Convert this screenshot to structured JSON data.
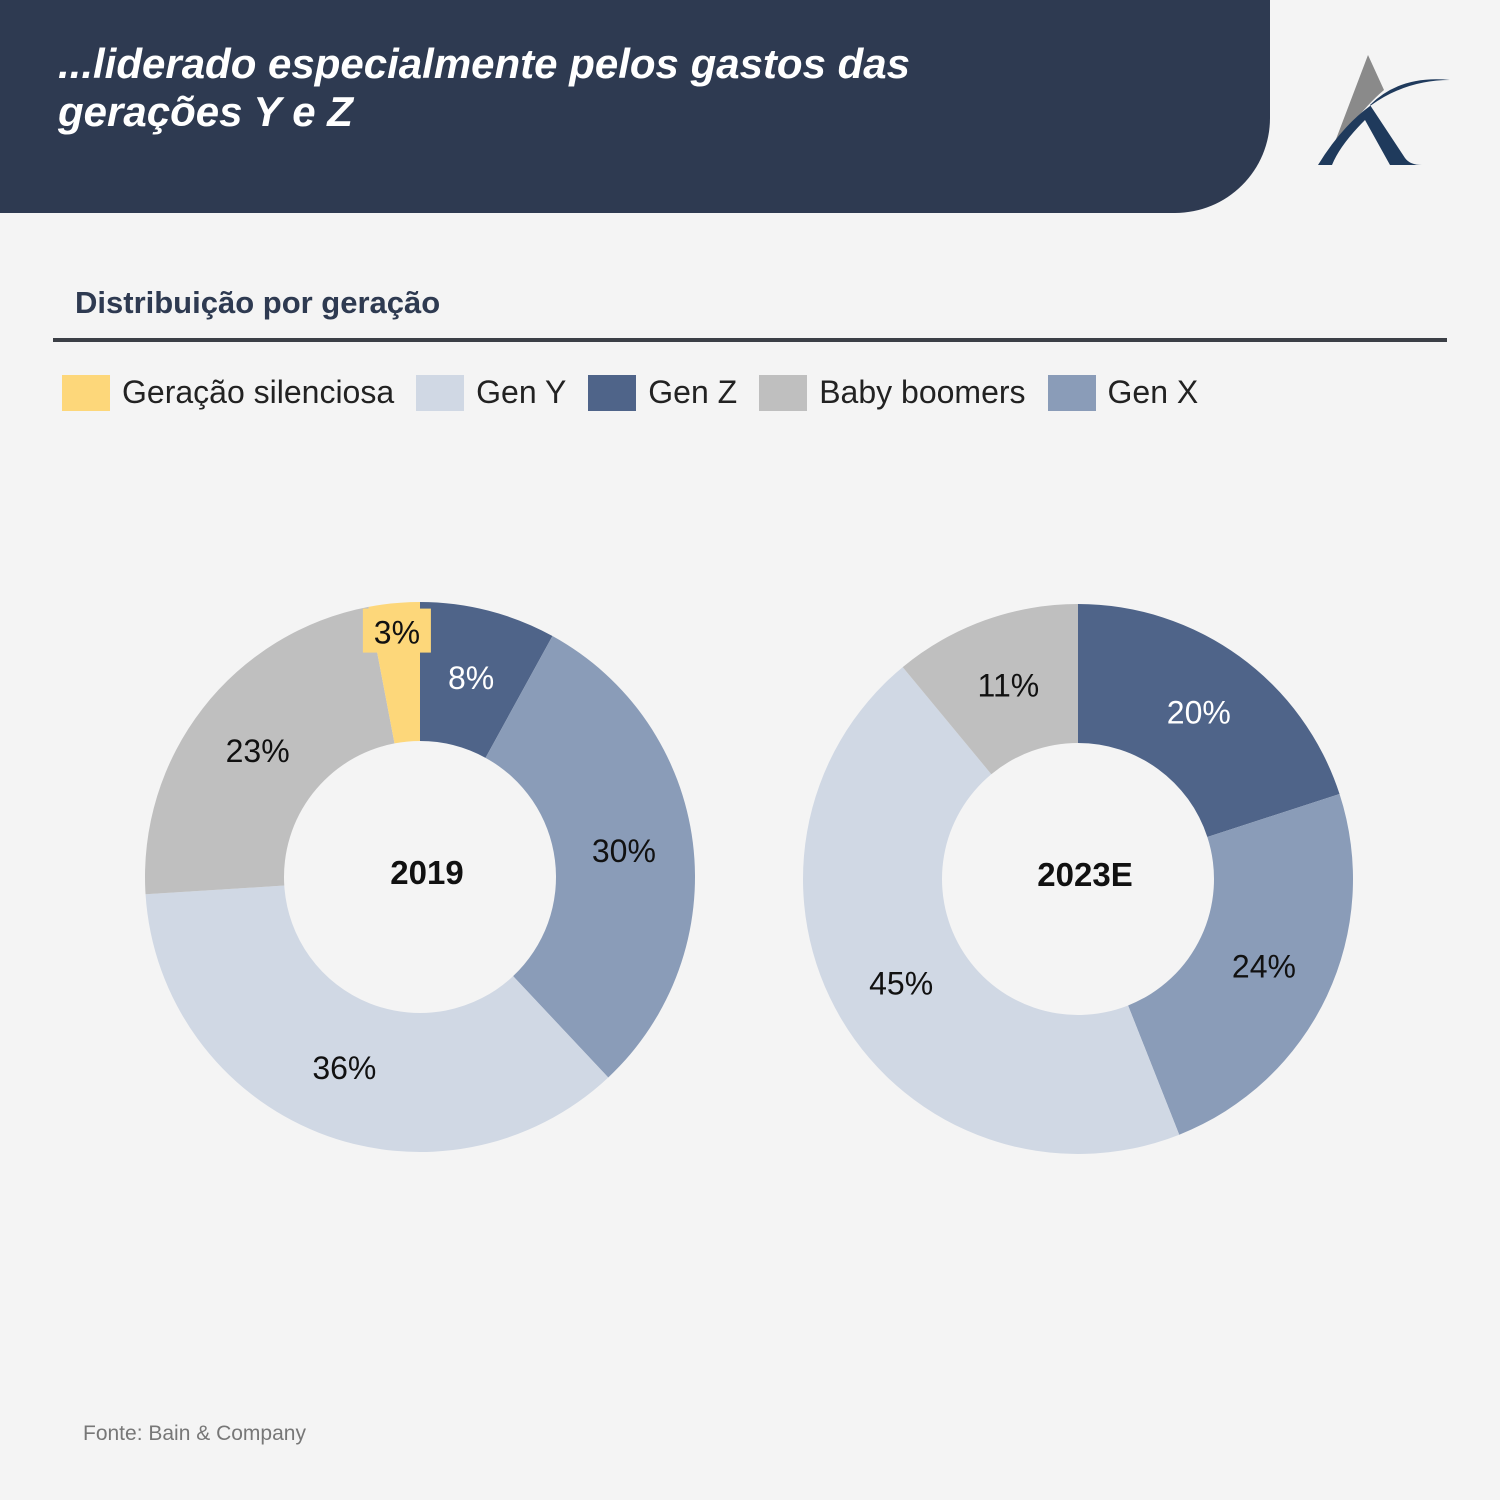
{
  "header": {
    "title_line1": "...liderado especialmente pelos gastos das",
    "title_line2": "gerações Y e Z"
  },
  "subtitle": "Distribuição por geração",
  "legend": [
    {
      "label": "Geração silenciosa",
      "color": "#fdd77a"
    },
    {
      "label": "Gen Y",
      "color": "#d0d8e4"
    },
    {
      "label": "Gen Z",
      "color": "#4f6489"
    },
    {
      "label": "Baby boomers",
      "color": "#bfbfbf"
    },
    {
      "label": "Gen X",
      "color": "#8a9cb8"
    }
  ],
  "chart_data": [
    {
      "type": "pie",
      "title": "2019",
      "donut": true,
      "slices": [
        {
          "name": "Gen Z",
          "value": 8,
          "label": "8%",
          "color": "#4f6489",
          "label_color": "#ffffff"
        },
        {
          "name": "Gen X",
          "value": 30,
          "label": "30%",
          "color": "#8a9cb8",
          "label_color": "#111111"
        },
        {
          "name": "Gen Y",
          "value": 36,
          "label": "36%",
          "color": "#d0d8e4",
          "label_color": "#111111"
        },
        {
          "name": "Baby boomers",
          "value": 23,
          "label": "23%",
          "color": "#bfbfbf",
          "label_color": "#111111"
        },
        {
          "name": "Geração silenciosa",
          "value": 3,
          "label": "3%",
          "color": "#fdd77a",
          "label_color": "#111111"
        }
      ]
    },
    {
      "type": "pie",
      "title": "2023E",
      "donut": true,
      "slices": [
        {
          "name": "Gen Z",
          "value": 20,
          "label": "20%",
          "color": "#4f6489",
          "label_color": "#ffffff"
        },
        {
          "name": "Gen X",
          "value": 24,
          "label": "24%",
          "color": "#8a9cb8",
          "label_color": "#111111"
        },
        {
          "name": "Gen Y",
          "value": 45,
          "label": "45%",
          "color": "#d0d8e4",
          "label_color": "#111111"
        },
        {
          "name": "Baby boomers",
          "value": 11,
          "label": "11%",
          "color": "#bfbfbf",
          "label_color": "#111111"
        }
      ]
    }
  ],
  "source": "Fonte: Bain & Company"
}
